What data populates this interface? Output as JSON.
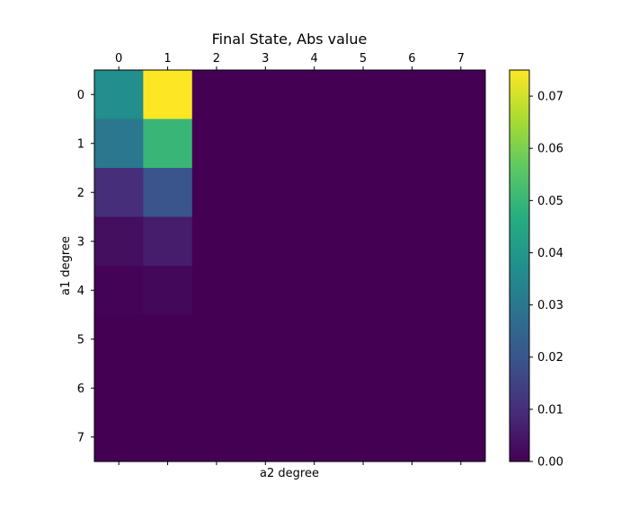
{
  "chart_data": {
    "type": "heatmap",
    "title": "Final State, Abs value",
    "xlabel": "a2 degree",
    "ylabel": "a1 degree",
    "x_ticks": [
      "0",
      "1",
      "2",
      "3",
      "4",
      "5",
      "6",
      "7"
    ],
    "y_ticks": [
      "0",
      "1",
      "2",
      "3",
      "4",
      "5",
      "6",
      "7"
    ],
    "x_axis_position": "top",
    "colormap": "viridis",
    "color_range": [
      0.0,
      0.075
    ],
    "colorbar_ticks": [
      "0.00",
      "0.01",
      "0.02",
      "0.03",
      "0.04",
      "0.05",
      "0.06",
      "0.07"
    ],
    "colorbar_tick_values": [
      0.0,
      0.01,
      0.02,
      0.03,
      0.04,
      0.05,
      0.06,
      0.07
    ],
    "values": [
      [
        0.037,
        0.075,
        0.0,
        0.0,
        0.0,
        0.0,
        0.0,
        0.0
      ],
      [
        0.03,
        0.05,
        0.0,
        0.0,
        0.0,
        0.0,
        0.0,
        0.0
      ],
      [
        0.01,
        0.02,
        0.0,
        0.0,
        0.0,
        0.0,
        0.0,
        0.0
      ],
      [
        0.003,
        0.006,
        0.0,
        0.0,
        0.0,
        0.0,
        0.0,
        0.0
      ],
      [
        0.0005,
        0.0015,
        0.0,
        0.0,
        0.0,
        0.0,
        0.0,
        0.0
      ],
      [
        0.0,
        0.0,
        0.0,
        0.0,
        0.0,
        0.0,
        0.0,
        0.0
      ],
      [
        0.0,
        0.0,
        0.0,
        0.0,
        0.0,
        0.0,
        0.0,
        0.0
      ],
      [
        0.0,
        0.0,
        0.0,
        0.0,
        0.0,
        0.0,
        0.0,
        0.0
      ]
    ],
    "grid": false
  }
}
